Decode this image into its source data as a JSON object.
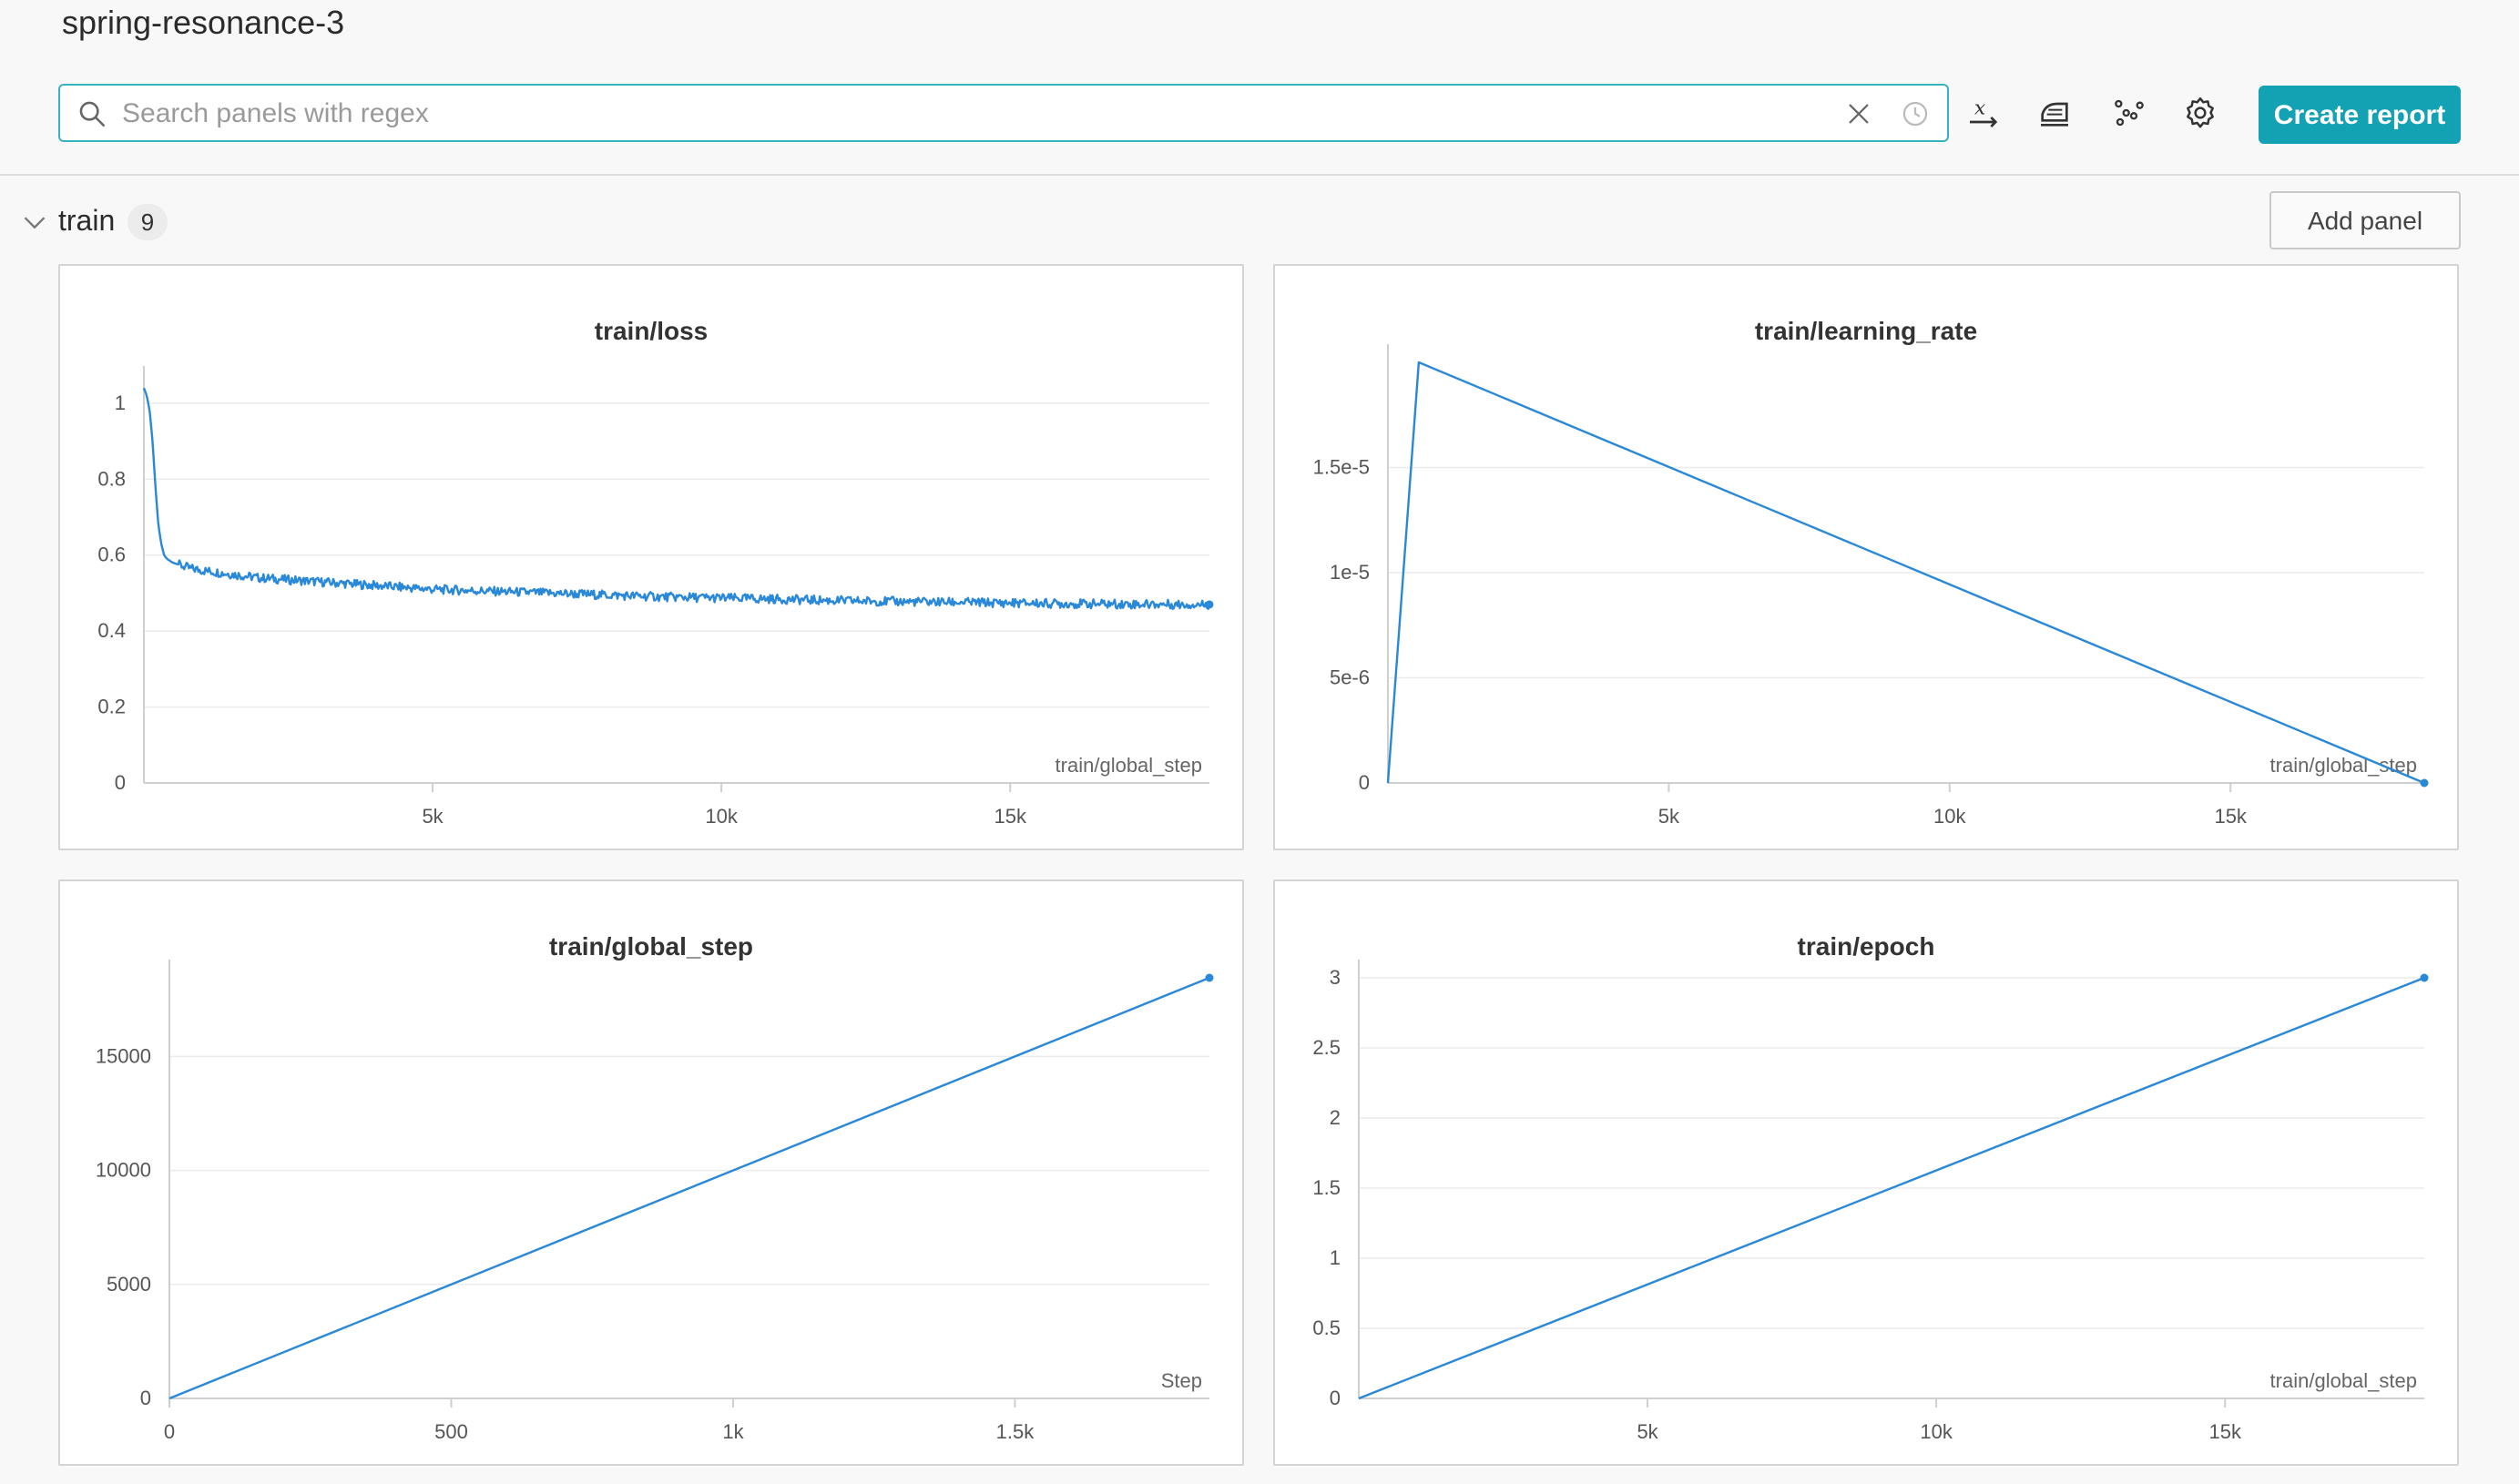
{
  "run": {
    "title": "spring-resonance-3"
  },
  "search": {
    "placeholder": "Search panels with regex",
    "value": ""
  },
  "toolbar": {
    "icons": [
      "x-axis-icon",
      "smoothing-icon",
      "outliers-icon",
      "settings-icon"
    ],
    "create_report_label": "Create report"
  },
  "section": {
    "title": "train",
    "count": "9",
    "add_panel_label": "Add panel"
  },
  "accent_color": "#13a1b4",
  "line_color": "#2a88d8",
  "chart_data": [
    {
      "type": "line",
      "title": "train/loss",
      "xlabel": "train/global_step",
      "xlim": [
        0,
        18450
      ],
      "ylim": [
        0,
        1.05
      ],
      "xticks": [
        {
          "v": 5000,
          "label": "5k"
        },
        {
          "v": 10000,
          "label": "10k"
        },
        {
          "v": 15000,
          "label": "15k"
        }
      ],
      "yticks": [
        {
          "v": 0,
          "label": "0"
        },
        {
          "v": 0.2,
          "label": "0.2"
        },
        {
          "v": 0.4,
          "label": "0.4"
        },
        {
          "v": 0.6,
          "label": "0.6"
        },
        {
          "v": 0.8,
          "label": "0.8"
        },
        {
          "v": 1,
          "label": "1"
        }
      ],
      "series": [
        {
          "x": [
            0,
            50,
            100,
            150,
            200,
            250,
            300,
            350,
            400,
            500,
            600,
            800,
            1000,
            1500,
            2000,
            3000,
            4000,
            5000,
            6000,
            7000,
            8000,
            9000,
            10000,
            11000,
            12000,
            13000,
            14000,
            15000,
            16000,
            17000,
            18000,
            18450
          ],
          "y": [
            1.04,
            1.02,
            0.98,
            0.9,
            0.78,
            0.68,
            0.63,
            0.6,
            0.59,
            0.58,
            0.575,
            0.565,
            0.56,
            0.55,
            0.54,
            0.53,
            0.52,
            0.51,
            0.505,
            0.5,
            0.495,
            0.49,
            0.487,
            0.484,
            0.48,
            0.478,
            0.476,
            0.474,
            0.472,
            0.471,
            0.47,
            0.47
          ],
          "noise": 0.012
        }
      ],
      "end_marker": true
    },
    {
      "type": "line",
      "title": "train/learning_rate",
      "xlabel": "train/global_step",
      "xlim": [
        0,
        18450
      ],
      "ylim": [
        0,
        2e-05
      ],
      "xticks": [
        {
          "v": 5000,
          "label": "5k"
        },
        {
          "v": 10000,
          "label": "10k"
        },
        {
          "v": 15000,
          "label": "15k"
        }
      ],
      "yticks": [
        {
          "v": 0,
          "label": "0"
        },
        {
          "v": 5e-06,
          "label": "5e-6"
        },
        {
          "v": 1e-05,
          "label": "1e-5"
        },
        {
          "v": 1.5e-05,
          "label": "1.5e-5"
        }
      ],
      "series": [
        {
          "x": [
            0,
            550,
            18450
          ],
          "y": [
            0,
            2e-05,
            0
          ]
        }
      ],
      "end_marker": true
    },
    {
      "type": "line",
      "title": "train/global_step",
      "xlabel": "Step",
      "xlim": [
        0,
        1845
      ],
      "ylim": [
        0,
        18450
      ],
      "xticks": [
        {
          "v": 0,
          "label": "0"
        },
        {
          "v": 500,
          "label": "500"
        },
        {
          "v": 1000,
          "label": "1k"
        },
        {
          "v": 1500,
          "label": "1.5k"
        }
      ],
      "yticks": [
        {
          "v": 0,
          "label": "0"
        },
        {
          "v": 5000,
          "label": "5000"
        },
        {
          "v": 10000,
          "label": "10000"
        },
        {
          "v": 15000,
          "label": "15000"
        }
      ],
      "series": [
        {
          "x": [
            0,
            1845
          ],
          "y": [
            0,
            18450
          ]
        }
      ],
      "end_marker": true
    },
    {
      "type": "line",
      "title": "train/epoch",
      "xlabel": "train/global_step",
      "xlim": [
        0,
        18450
      ],
      "ylim": [
        0,
        3
      ],
      "xticks": [
        {
          "v": 5000,
          "label": "5k"
        },
        {
          "v": 10000,
          "label": "10k"
        },
        {
          "v": 15000,
          "label": "15k"
        }
      ],
      "yticks": [
        {
          "v": 0,
          "label": "0"
        },
        {
          "v": 0.5,
          "label": "0.5"
        },
        {
          "v": 1,
          "label": "1"
        },
        {
          "v": 1.5,
          "label": "1.5"
        },
        {
          "v": 2,
          "label": "2"
        },
        {
          "v": 2.5,
          "label": "2.5"
        },
        {
          "v": 3,
          "label": "3"
        }
      ],
      "series": [
        {
          "x": [
            0,
            18450
          ],
          "y": [
            0,
            3
          ]
        }
      ],
      "end_marker": true
    }
  ]
}
